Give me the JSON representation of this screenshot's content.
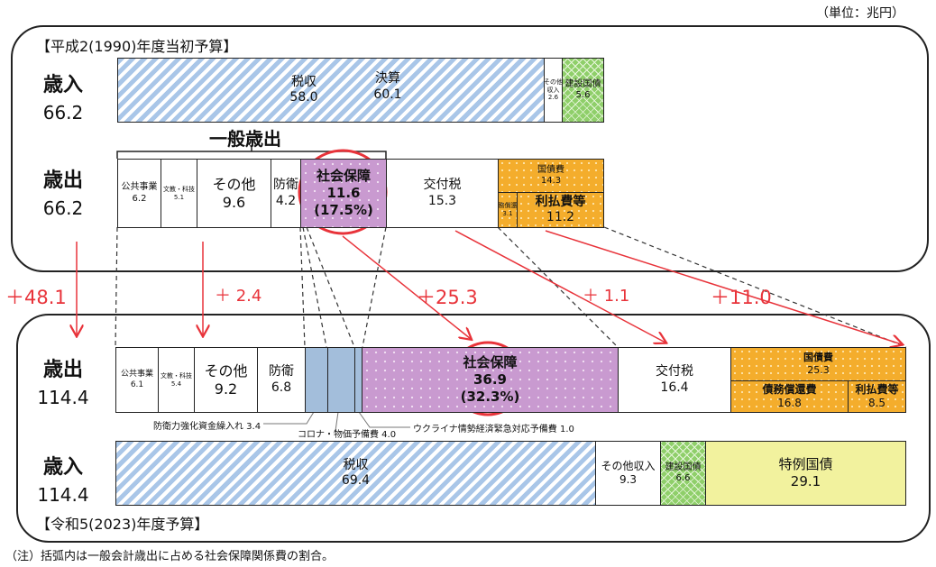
{
  "unit": "（単位：兆円）",
  "note": "（注）括弧内は一般会計歳出に占める社会保障関係費の割合。",
  "colors": {
    "accent": "#e8333a",
    "tax": "#a9c6e8",
    "social": "#c99ad0",
    "debt": "#f4ad2c",
    "construction_bond": "#8fcf6a",
    "special_bond": "#f2f29e",
    "covid": "#a3bedb"
  },
  "fy1990": {
    "title": "【平成2(1990)年度当初予算】",
    "revenue": {
      "label": "歳入",
      "total": "66.2",
      "tax": {
        "label": "税収",
        "value": "58.0",
        "settled_label": "決算",
        "settled_value": "60.1"
      },
      "other": {
        "label1": "その他",
        "label2": "収入",
        "value": "2.6"
      },
      "construction_bond": {
        "label": "建設国債",
        "value": "5.6"
      }
    },
    "general_expenditure_label": "一般歳出",
    "expenditure": {
      "label": "歳出",
      "total": "66.2",
      "public_works": {
        "label": "公共事業",
        "value": "6.2"
      },
      "education": {
        "label": "文教・科技",
        "value": "5.1"
      },
      "other": {
        "label": "その他",
        "value": "9.6"
      },
      "defense": {
        "label": "防衛",
        "value": "4.2"
      },
      "social": {
        "label": "社会保障",
        "value": "11.6",
        "share": "(17.5%)"
      },
      "tax_grants": {
        "label": "交付税",
        "value": "15.3"
      },
      "debt": {
        "label": "国債費",
        "value": "14.3"
      },
      "redemption": {
        "label": "債務償還費",
        "value": "3.1"
      },
      "interest": {
        "label": "利払費等",
        "value": "11.2"
      }
    }
  },
  "changes": {
    "total": "＋48.1",
    "other": "＋ 2.4",
    "social": "＋25.3",
    "tax_grants": "＋ 1.1",
    "debt": "＋11.0"
  },
  "fy2023": {
    "title": "【令和5(2023)年度予算】",
    "expenditure": {
      "label": "歳出",
      "total": "114.4",
      "public_works": {
        "label": "公共事業",
        "value": "6.1"
      },
      "education": {
        "label": "文教・科技",
        "value": "5.4"
      },
      "other": {
        "label": "その他",
        "value": "9.2"
      },
      "defense": {
        "label": "防衛",
        "value": "6.8"
      },
      "defense_fund": "防衛力強化資金繰入れ 3.4",
      "covid_reserve": "コロナ・物価予備費 4.0",
      "ukraine_reserve": "ウクライナ情勢経済緊急対応予備費 1.0",
      "social": {
        "label": "社会保障",
        "value": "36.9",
        "share": "(32.3%)"
      },
      "tax_grants": {
        "label": "交付税",
        "value": "16.4"
      },
      "debt": {
        "label": "国債費",
        "value": "25.3"
      },
      "redemption": {
        "label": "債務償還費",
        "value": "16.8"
      },
      "interest": {
        "label": "利払費等",
        "value": "8.5"
      }
    },
    "revenue": {
      "label": "歳入",
      "total": "114.4",
      "tax": {
        "label": "税収",
        "value": "69.4"
      },
      "other": {
        "label": "その他収入",
        "value": "9.3"
      },
      "construction_bond": {
        "label": "建設国債",
        "value": "6.6"
      },
      "special_bond": {
        "label": "特例国債",
        "value": "29.1"
      }
    }
  }
}
